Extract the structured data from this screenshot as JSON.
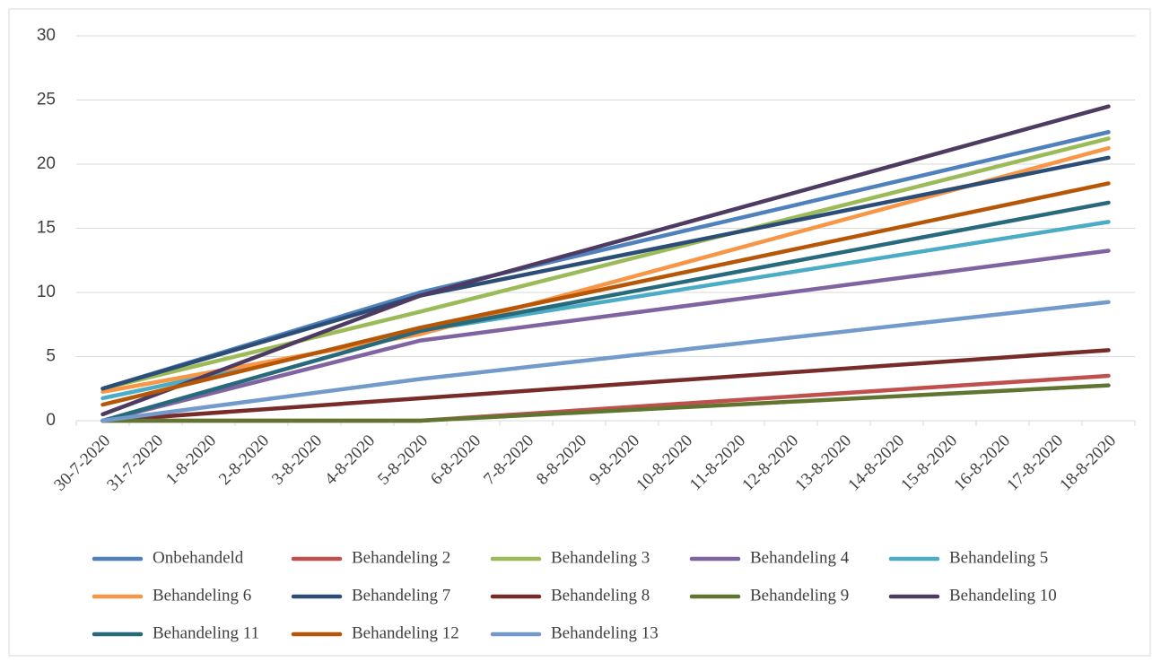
{
  "chart_data": {
    "type": "line",
    "categories": [
      "30-7-2020",
      "31-7-2020",
      "1-8-2020",
      "2-8-2020",
      "3-8-2020",
      "4-8-2020",
      "5-8-2020",
      "6-8-2020",
      "7-8-2020",
      "8-8-2020",
      "9-8-2020",
      "10-8-2020",
      "11-8-2020",
      "12-8-2020",
      "13-8-2020",
      "14-8-2020",
      "15-8-2020",
      "16-8-2020",
      "17-8-2020",
      "18-8-2020"
    ],
    "span_gaps": true,
    "grid": true,
    "legend": "bottom",
    "ylim": [
      0,
      30
    ],
    "yticks": [
      0,
      5,
      10,
      15,
      20,
      25,
      30
    ],
    "series": [
      {
        "name": "Onbehandeld",
        "color": "#4f81bd",
        "values": [
          2.5,
          null,
          null,
          null,
          null,
          null,
          10,
          null,
          null,
          null,
          null,
          null,
          null,
          null,
          null,
          null,
          null,
          null,
          null,
          22.5
        ]
      },
      {
        "name": "Behandeling 2",
        "color": "#c0504d",
        "values": [
          0,
          null,
          null,
          null,
          null,
          null,
          0,
          null,
          null,
          null,
          null,
          null,
          null,
          null,
          null,
          null,
          null,
          null,
          null,
          3.5
        ]
      },
      {
        "name": "Behandeling 3",
        "color": "#9bbb59",
        "values": [
          2.5,
          null,
          null,
          null,
          null,
          null,
          8.5,
          null,
          null,
          null,
          null,
          null,
          null,
          null,
          null,
          null,
          null,
          null,
          null,
          22
        ]
      },
      {
        "name": "Behandeling 4",
        "color": "#8064a2",
        "values": [
          0,
          null,
          null,
          null,
          null,
          null,
          6.25,
          null,
          null,
          null,
          null,
          null,
          null,
          null,
          null,
          null,
          null,
          null,
          null,
          13.25
        ]
      },
      {
        "name": "Behandeling 5",
        "color": "#4bacc6",
        "values": [
          1.75,
          null,
          null,
          null,
          null,
          null,
          7,
          null,
          null,
          null,
          null,
          null,
          null,
          null,
          null,
          null,
          null,
          null,
          null,
          15.5
        ]
      },
      {
        "name": "Behandeling 6",
        "color": "#f79646",
        "values": [
          2.25,
          null,
          null,
          null,
          null,
          null,
          6.75,
          null,
          null,
          null,
          null,
          null,
          null,
          null,
          null,
          null,
          null,
          null,
          null,
          21.25
        ]
      },
      {
        "name": "Behandeling 7",
        "color": "#2c4d75",
        "values": [
          2.5,
          null,
          null,
          null,
          null,
          null,
          9.75,
          null,
          null,
          null,
          null,
          null,
          null,
          null,
          null,
          null,
          null,
          null,
          null,
          20.5
        ]
      },
      {
        "name": "Behandeling 8",
        "color": "#772c2a",
        "values": [
          0,
          null,
          null,
          null,
          null,
          null,
          1.75,
          null,
          null,
          null,
          null,
          null,
          null,
          null,
          null,
          null,
          null,
          null,
          null,
          5.5
        ]
      },
      {
        "name": "Behandeling 9",
        "color": "#5f7530",
        "values": [
          0,
          null,
          null,
          null,
          null,
          null,
          0,
          null,
          null,
          null,
          null,
          null,
          null,
          null,
          null,
          null,
          null,
          null,
          null,
          2.75
        ]
      },
      {
        "name": "Behandeling 10",
        "color": "#4d3b62",
        "values": [
          0.5,
          null,
          null,
          null,
          null,
          null,
          9.75,
          null,
          null,
          null,
          null,
          null,
          null,
          null,
          null,
          null,
          null,
          null,
          null,
          24.5
        ]
      },
      {
        "name": "Behandeling 11",
        "color": "#276a7c",
        "values": [
          0,
          null,
          null,
          null,
          null,
          null,
          7,
          null,
          null,
          null,
          null,
          null,
          null,
          null,
          null,
          null,
          null,
          null,
          null,
          17
        ]
      },
      {
        "name": "Behandeling 12",
        "color": "#b65708",
        "values": [
          1.25,
          null,
          null,
          null,
          null,
          null,
          7.25,
          null,
          null,
          null,
          null,
          null,
          null,
          null,
          null,
          null,
          null,
          null,
          null,
          18.5
        ]
      },
      {
        "name": "Behandeling 13",
        "color": "#729aca",
        "values": [
          0,
          null,
          null,
          null,
          null,
          null,
          3.25,
          null,
          null,
          null,
          null,
          null,
          null,
          null,
          null,
          null,
          null,
          null,
          null,
          9.25
        ]
      }
    ]
  }
}
